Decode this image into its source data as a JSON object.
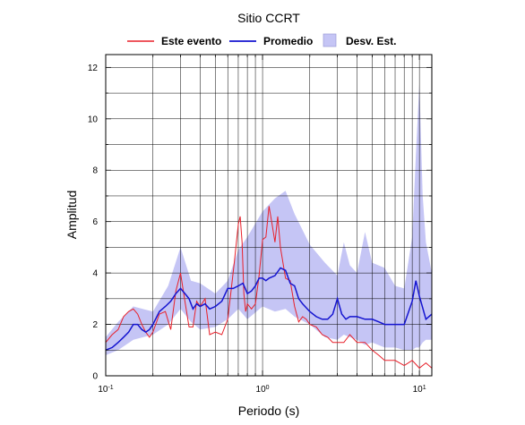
{
  "chart_data": {
    "type": "line",
    "title": "Sitio CCRT",
    "xlabel": "Periodo (s)",
    "ylabel": "Amplitud",
    "xscale": "log",
    "xlim": [
      0.1,
      12
    ],
    "ylim": [
      0,
      12.5
    ],
    "xticks": [
      {
        "base": "10",
        "exp": "-1"
      },
      {
        "base": "10",
        "exp": "0"
      },
      {
        "base": "10",
        "exp": "1"
      }
    ],
    "yticks": [
      "0",
      "2",
      "4",
      "6",
      "8",
      "10",
      "12"
    ],
    "legend": {
      "position": "top-center"
    },
    "grid": true,
    "series": [
      {
        "name": "Este evento",
        "color": "#e8202a",
        "x": [
          0.1,
          0.11,
          0.12,
          0.13,
          0.14,
          0.15,
          0.16,
          0.17,
          0.18,
          0.19,
          0.2,
          0.22,
          0.24,
          0.26,
          0.28,
          0.3,
          0.32,
          0.34,
          0.36,
          0.38,
          0.4,
          0.43,
          0.46,
          0.5,
          0.55,
          0.6,
          0.63,
          0.66,
          0.7,
          0.72,
          0.74,
          0.76,
          0.78,
          0.8,
          0.85,
          0.9,
          0.95,
          1.0,
          1.05,
          1.1,
          1.15,
          1.2,
          1.25,
          1.3,
          1.4,
          1.5,
          1.6,
          1.7,
          1.8,
          1.9,
          2.0,
          2.2,
          2.4,
          2.6,
          2.8,
          3.0,
          3.3,
          3.6,
          4.0,
          4.5,
          5.0,
          5.5,
          6.0,
          7.0,
          8.0,
          9.0,
          10.0,
          11.0,
          12.0
        ],
        "values": [
          1.3,
          1.6,
          1.8,
          2.3,
          2.5,
          2.6,
          2.4,
          2.0,
          1.7,
          1.5,
          1.7,
          2.4,
          2.5,
          1.8,
          3.3,
          4.0,
          2.9,
          1.9,
          1.9,
          2.9,
          2.7,
          3.0,
          1.6,
          1.7,
          1.6,
          2.2,
          3.3,
          4.4,
          5.9,
          6.2,
          5.2,
          3.2,
          2.5,
          2.8,
          2.6,
          2.8,
          3.9,
          5.3,
          5.4,
          6.6,
          5.9,
          5.2,
          6.2,
          5.0,
          3.8,
          3.7,
          2.7,
          2.1,
          2.3,
          2.2,
          2.0,
          1.9,
          1.6,
          1.5,
          1.3,
          1.3,
          1.3,
          1.6,
          1.3,
          1.3,
          1.0,
          0.8,
          0.6,
          0.6,
          0.4,
          0.6,
          0.3,
          0.5,
          0.3
        ]
      },
      {
        "name": "Promedio",
        "color": "#1414d0",
        "x": [
          0.1,
          0.11,
          0.12,
          0.13,
          0.14,
          0.15,
          0.16,
          0.17,
          0.18,
          0.19,
          0.2,
          0.22,
          0.24,
          0.26,
          0.28,
          0.3,
          0.32,
          0.34,
          0.36,
          0.38,
          0.4,
          0.43,
          0.46,
          0.5,
          0.55,
          0.6,
          0.65,
          0.7,
          0.75,
          0.8,
          0.85,
          0.9,
          0.95,
          1.0,
          1.05,
          1.1,
          1.2,
          1.3,
          1.4,
          1.5,
          1.6,
          1.7,
          1.8,
          2.0,
          2.2,
          2.4,
          2.6,
          2.8,
          3.0,
          3.2,
          3.4,
          3.6,
          4.0,
          4.5,
          5.0,
          5.5,
          6.0,
          6.5,
          7.0,
          8.0,
          9.0,
          9.5,
          10.0,
          11.0,
          12.0
        ],
        "values": [
          1.0,
          1.1,
          1.3,
          1.5,
          1.7,
          2.0,
          2.0,
          1.8,
          1.7,
          1.8,
          2.0,
          2.5,
          2.7,
          2.9,
          3.2,
          3.4,
          3.2,
          3.0,
          2.6,
          2.8,
          2.7,
          2.8,
          2.6,
          2.7,
          2.9,
          3.4,
          3.4,
          3.5,
          3.6,
          3.2,
          3.3,
          3.5,
          3.8,
          3.8,
          3.7,
          3.8,
          3.9,
          4.2,
          4.1,
          3.6,
          3.5,
          3.0,
          2.8,
          2.5,
          2.3,
          2.2,
          2.2,
          2.4,
          3.0,
          2.4,
          2.2,
          2.3,
          2.3,
          2.2,
          2.2,
          2.1,
          2.0,
          2.0,
          2.0,
          2.0,
          2.9,
          3.7,
          3.1,
          2.2,
          2.4
        ]
      }
    ],
    "band": {
      "name": "Desv. Est.",
      "color": "#c5c5f5",
      "x": [
        0.1,
        0.12,
        0.15,
        0.2,
        0.25,
        0.3,
        0.35,
        0.4,
        0.5,
        0.6,
        0.7,
        0.8,
        1.0,
        1.2,
        1.4,
        1.6,
        2.0,
        2.5,
        3.0,
        3.3,
        3.6,
        4.0,
        4.5,
        5.0,
        6.0,
        7.0,
        8.0,
        9.0,
        9.5,
        10.0,
        10.5,
        11.0,
        12.0
      ],
      "upper": [
        1.5,
        2.1,
        2.7,
        2.5,
        3.5,
        5.0,
        3.7,
        3.6,
        3.2,
        3.7,
        4.9,
        5.4,
        6.4,
        6.9,
        7.2,
        6.3,
        5.1,
        4.4,
        3.9,
        5.2,
        4.3,
        4.0,
        5.6,
        4.4,
        4.2,
        3.5,
        3.4,
        5.4,
        8.6,
        11.4,
        7.0,
        5.2,
        4.0
      ],
      "lower": [
        0.8,
        1.0,
        1.4,
        1.6,
        2.0,
        2.6,
        2.1,
        1.8,
        1.9,
        2.2,
        2.6,
        2.2,
        2.7,
        2.5,
        2.6,
        2.3,
        2.0,
        1.5,
        1.4,
        1.6,
        1.5,
        1.4,
        1.2,
        1.3,
        1.1,
        1.1,
        1.0,
        1.0,
        1.1,
        1.1,
        1.3,
        1.4,
        1.4
      ]
    }
  }
}
